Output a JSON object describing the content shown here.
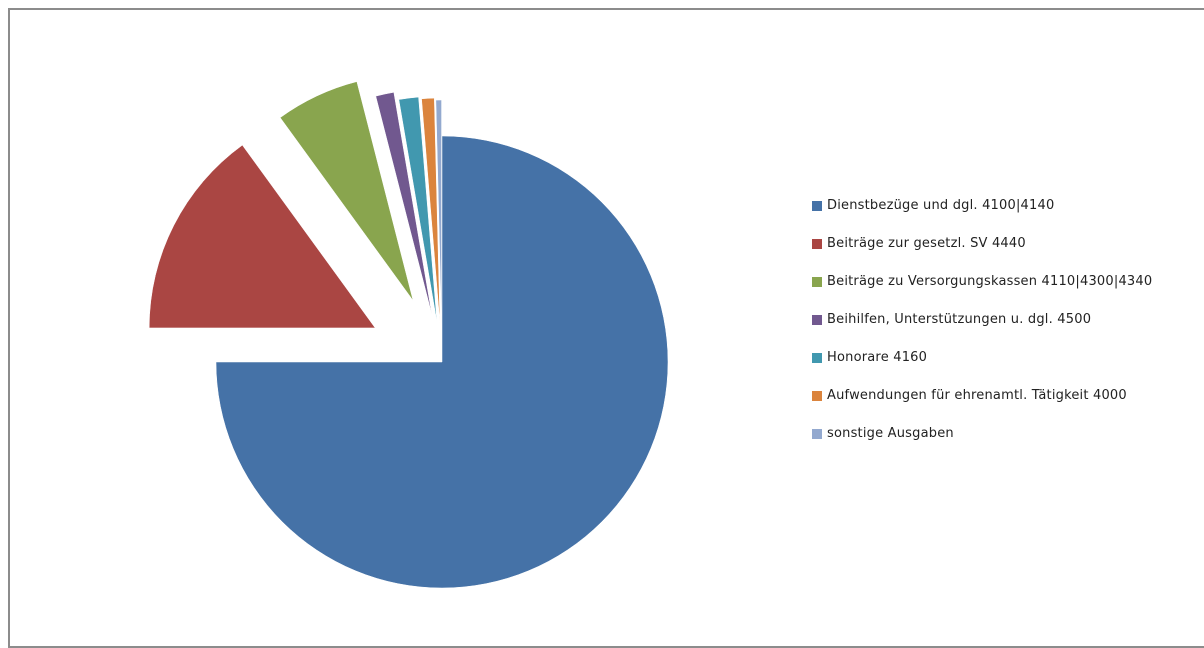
{
  "chart_data": {
    "type": "pie",
    "title": "",
    "exploded": true,
    "legend_position": "right",
    "slices": [
      {
        "label": "Dienstbezüge und dgl. 4100|4140",
        "value": 75.0,
        "color": "#4572a7"
      },
      {
        "label": "Beiträge zur gesetzl. SV 4440",
        "value": 15.0,
        "color": "#aa4643"
      },
      {
        "label": "Beiträge zu Versorgungskassen 4110|4300|4340",
        "value": 6.0,
        "color": "#89a54e"
      },
      {
        "label": "Beihilfen, Unterstützungen u. dgl. 4500",
        "value": 1.3,
        "color": "#71588f"
      },
      {
        "label": "Honorare 4160",
        "value": 1.4,
        "color": "#4198af"
      },
      {
        "label": "Aufwendungen für ehrenamtl. Tätigkeit 4000",
        "value": 0.9,
        "color": "#db843d"
      },
      {
        "label": "sonstige Ausgaben",
        "value": 0.4,
        "color": "#93a9cf"
      }
    ]
  }
}
